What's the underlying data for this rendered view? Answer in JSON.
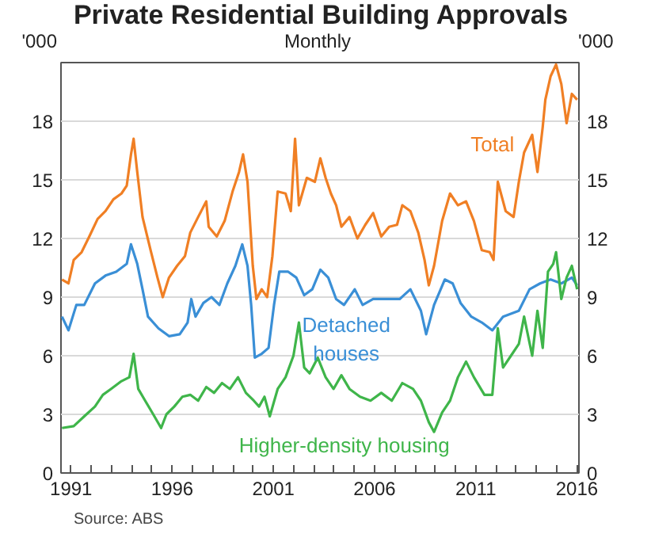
{
  "chart_data": {
    "type": "line",
    "title": "Private Residential Building Approvals",
    "subtitle": "Monthly",
    "annotations": [
      "Source: ABS"
    ],
    "xlim": [
      1990.5,
      2016.1
    ],
    "ylabel": "'000",
    "y2label": "'000",
    "xticks": [
      1991,
      {
        "value": 1992,
        "label": null
      },
      {
        "value": 1993,
        "label": null
      },
      {
        "value": 1994,
        "label": null
      },
      {
        "value": 1995,
        "label": null
      },
      1996,
      {
        "value": 1997,
        "label": null
      },
      {
        "value": 1998,
        "label": null
      },
      {
        "value": 1999,
        "label": null
      },
      {
        "value": 2000,
        "label": null
      },
      2001,
      {
        "value": 2002,
        "label": null
      },
      {
        "value": 2003,
        "label": null
      },
      {
        "value": 2004,
        "label": null
      },
      {
        "value": 2005,
        "label": null
      },
      2006,
      {
        "value": 2007,
        "label": null
      },
      {
        "value": 2008,
        "label": null
      },
      {
        "value": 2009,
        "label": null
      },
      {
        "value": 2010,
        "label": null
      },
      2011,
      {
        "value": 2012,
        "label": null
      },
      {
        "value": 2013,
        "label": null
      },
      {
        "value": 2014,
        "label": null
      },
      {
        "value": 2015,
        "label": null
      },
      2016
    ],
    "ylim": [
      0,
      21
    ],
    "yticks": [
      0,
      3,
      6,
      9,
      12,
      15,
      18
    ],
    "y2lim": [
      0,
      21
    ],
    "y2ticks": [
      0,
      3,
      6,
      9,
      12,
      15,
      18
    ],
    "grid": "y",
    "series": [
      {
        "name": "Total",
        "color": "#f07f24",
        "x": [
          1990.55,
          1990.87,
          1991.13,
          1991.52,
          1991.9,
          1992.31,
          1992.7,
          1993.09,
          1993.49,
          1993.75,
          1993.96,
          1994.09,
          1994.27,
          1994.53,
          1994.93,
          1995.27,
          1995.53,
          1995.84,
          1996.24,
          1996.63,
          1996.89,
          1997.28,
          1997.68,
          1997.8,
          1998.2,
          1998.59,
          1998.98,
          1999.3,
          1999.5,
          1999.72,
          1999.98,
          2000.16,
          2000.42,
          2000.69,
          2000.95,
          2001.21,
          2001.6,
          2001.86,
          2002.07,
          2002.26,
          2002.65,
          2003.05,
          2003.32,
          2003.58,
          2003.84,
          2004.1,
          2004.36,
          2004.76,
          2005.15,
          2005.54,
          2005.93,
          2006.33,
          2006.72,
          2007.11,
          2007.37,
          2007.77,
          2008.16,
          2008.47,
          2008.68,
          2008.94,
          2009.34,
          2009.73,
          2010.12,
          2010.52,
          2010.91,
          2011.3,
          2011.69,
          2011.88,
          2012.09,
          2012.48,
          2012.87,
          2013.13,
          2013.39,
          2013.79,
          2014.05,
          2014.31,
          2014.44,
          2014.7,
          2014.97,
          2015.23,
          2015.49,
          2015.75,
          2016.01
        ],
        "values": [
          9.9,
          9.7,
          10.9,
          11.3,
          12.1,
          13.0,
          13.4,
          14.0,
          14.3,
          14.7,
          16.3,
          17.1,
          15.4,
          13.1,
          11.4,
          10.0,
          9.0,
          10.0,
          10.6,
          11.1,
          12.3,
          13.1,
          13.9,
          12.6,
          12.1,
          12.9,
          14.4,
          15.4,
          16.3,
          14.9,
          10.6,
          8.9,
          9.4,
          9.0,
          11.1,
          14.4,
          14.3,
          13.4,
          17.1,
          13.7,
          15.1,
          14.9,
          16.1,
          15.1,
          14.3,
          13.7,
          12.6,
          13.1,
          12.0,
          12.7,
          13.3,
          12.1,
          12.6,
          12.7,
          13.7,
          13.4,
          12.3,
          10.9,
          9.6,
          10.6,
          12.9,
          14.3,
          13.7,
          13.9,
          12.9,
          11.4,
          11.3,
          10.9,
          14.9,
          13.4,
          13.1,
          14.9,
          16.4,
          17.3,
          15.4,
          17.7,
          19.1,
          20.3,
          20.9,
          19.9,
          17.9,
          19.4,
          19.1
        ]
      },
      {
        "name": "Detached houses",
        "color": "#3a8fd6",
        "x": [
          1990.55,
          1990.87,
          1991.26,
          1991.65,
          1992.18,
          1992.7,
          1993.23,
          1993.75,
          1993.96,
          1994.27,
          1994.53,
          1994.8,
          1995.32,
          1995.84,
          1996.37,
          1996.76,
          1996.94,
          1997.15,
          1997.54,
          1997.94,
          1998.33,
          1998.72,
          1999.12,
          1999.46,
          1999.72,
          1999.9,
          2000.08,
          2000.42,
          2000.76,
          2001.03,
          2001.29,
          2001.73,
          2002.13,
          2002.52,
          2002.92,
          2003.32,
          2003.71,
          2004.1,
          2004.49,
          2005.02,
          2005.41,
          2005.93,
          2006.59,
          2007.24,
          2007.77,
          2008.29,
          2008.55,
          2008.94,
          2009.47,
          2009.86,
          2010.25,
          2010.78,
          2011.3,
          2011.82,
          2012.35,
          2013.13,
          2013.66,
          2014.18,
          2014.7,
          2015.23,
          2015.75,
          2016.01
        ],
        "values": [
          8.0,
          7.3,
          8.6,
          8.6,
          9.7,
          10.1,
          10.3,
          10.7,
          11.7,
          10.7,
          9.4,
          8.0,
          7.4,
          7.0,
          7.1,
          7.7,
          8.9,
          8.0,
          8.7,
          9.0,
          8.6,
          9.7,
          10.6,
          11.7,
          10.6,
          8.6,
          5.9,
          6.1,
          6.4,
          8.6,
          10.3,
          10.3,
          10.0,
          9.1,
          9.4,
          10.4,
          10.0,
          8.9,
          8.6,
          9.4,
          8.6,
          8.9,
          8.9,
          8.9,
          9.4,
          8.3,
          7.1,
          8.6,
          9.9,
          9.7,
          8.7,
          8.0,
          7.7,
          7.3,
          8.0,
          8.3,
          9.4,
          9.7,
          9.9,
          9.7,
          10.0,
          9.6
        ]
      },
      {
        "name": "Higher-density housing",
        "color": "#3fb54a",
        "x": [
          1990.55,
          1991.13,
          1991.65,
          1992.18,
          1992.57,
          1992.97,
          1993.49,
          1993.88,
          1994.09,
          1994.32,
          1994.66,
          1995.06,
          1995.45,
          1995.71,
          1996.1,
          1996.5,
          1996.89,
          1997.28,
          1997.68,
          1998.07,
          1998.46,
          1998.85,
          1999.25,
          1999.64,
          2000.03,
          2000.29,
          2000.56,
          2000.82,
          2001.21,
          2001.6,
          2001.99,
          2002.26,
          2002.52,
          2002.79,
          2003.19,
          2003.58,
          2003.97,
          2004.36,
          2004.76,
          2005.28,
          2005.8,
          2006.33,
          2006.85,
          2007.37,
          2007.9,
          2008.29,
          2008.68,
          2008.94,
          2009.34,
          2009.73,
          2010.12,
          2010.52,
          2010.91,
          2011.43,
          2011.82,
          2012.09,
          2012.35,
          2012.74,
          2013.13,
          2013.39,
          2013.79,
          2014.05,
          2014.31,
          2014.57,
          2014.83,
          2014.97,
          2015.23,
          2015.49,
          2015.75,
          2016.01
        ],
        "values": [
          2.3,
          2.4,
          2.9,
          3.4,
          4.0,
          4.3,
          4.7,
          4.9,
          6.1,
          4.3,
          3.7,
          3.0,
          2.3,
          3.0,
          3.4,
          3.9,
          4.0,
          3.7,
          4.4,
          4.1,
          4.6,
          4.3,
          4.9,
          4.1,
          3.7,
          3.4,
          3.9,
          2.9,
          4.3,
          4.9,
          6.0,
          7.7,
          5.4,
          5.1,
          5.9,
          4.9,
          4.3,
          5.0,
          4.3,
          3.9,
          3.7,
          4.1,
          3.7,
          4.6,
          4.3,
          3.7,
          2.6,
          2.1,
          3.1,
          3.7,
          4.9,
          5.7,
          4.9,
          4.0,
          4.0,
          7.4,
          5.4,
          6.0,
          6.6,
          8.0,
          6.0,
          8.3,
          6.4,
          10.3,
          10.7,
          11.3,
          8.9,
          10.0,
          10.6,
          9.4
        ]
      }
    ]
  }
}
